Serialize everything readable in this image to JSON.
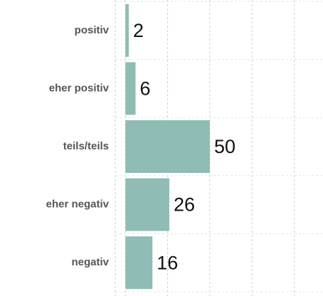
{
  "chart_data": {
    "type": "barh",
    "categories": [
      "positiv",
      "eher positiv",
      "teils/teils",
      "eher negativ",
      "negativ"
    ],
    "values": [
      2,
      6,
      50,
      26,
      16
    ],
    "color": "#8fbcb5",
    "xlim": [
      -6,
      117
    ],
    "xticks": [
      -6,
      0,
      25,
      50,
      75,
      100
    ],
    "grid": true
  }
}
